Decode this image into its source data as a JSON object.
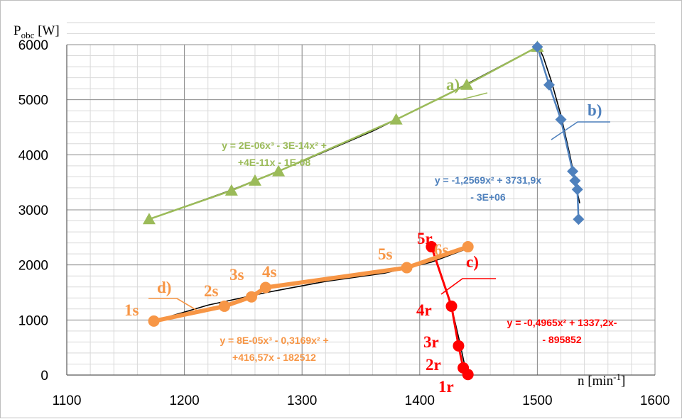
{
  "chart_data": {
    "type": "scatter",
    "xlim": [
      1100,
      1600
    ],
    "ylim": [
      0,
      6000
    ],
    "x_ticks": [
      "1100",
      "1200",
      "1300",
      "1400",
      "1500",
      "1600"
    ],
    "y_ticks": [
      "0",
      "1000",
      "2000",
      "3000",
      "4000",
      "5000",
      "6000"
    ],
    "ylabel_main": "P",
    "ylabel_sub": "obc",
    "ylabel_unit": " [W]",
    "xlabel_main": "n [min",
    "xlabel_sup": "-1",
    "xlabel_end": "]",
    "grid": true,
    "series": [
      {
        "name": "a)",
        "color": "#9BBB59",
        "marker": "triangle",
        "points": [
          [
            1170,
            2830
          ],
          [
            1240,
            3350
          ],
          [
            1260,
            3530
          ],
          [
            1280,
            3700
          ],
          [
            1380,
            4640
          ],
          [
            1440,
            5270
          ],
          [
            1500,
            5960
          ]
        ],
        "trend": [
          [
            1170,
            2830
          ],
          [
            1240,
            3360
          ],
          [
            1300,
            3880
          ],
          [
            1360,
            4430
          ],
          [
            1420,
            5060
          ],
          [
            1500,
            5960
          ]
        ],
        "equation": [
          "y = 2E-06x³ - 3E-14x² +",
          "+4E-11x - 1E-08"
        ]
      },
      {
        "name": "b)",
        "color": "#4F81BD",
        "marker": "diamond",
        "points": [
          [
            1500,
            5960
          ],
          [
            1510,
            5270
          ],
          [
            1520,
            4640
          ],
          [
            1530,
            3700
          ],
          [
            1532,
            3530
          ],
          [
            1534,
            3370
          ],
          [
            1535,
            2830
          ]
        ],
        "trend": [
          [
            1500,
            6000
          ],
          [
            1505,
            5780
          ],
          [
            1512,
            5330
          ],
          [
            1520,
            4720
          ],
          [
            1528,
            3960
          ],
          [
            1533,
            3420
          ],
          [
            1536,
            3120
          ]
        ],
        "equation": [
          "y = -1,2569x² + 3731,9x",
          "- 3E+06"
        ]
      },
      {
        "name": "c)",
        "color": "#FF0000",
        "marker": "circle",
        "points": [
          [
            1410,
            2330
          ],
          [
            1427,
            1250
          ],
          [
            1433,
            530
          ],
          [
            1437,
            130
          ],
          [
            1441,
            10
          ]
        ],
        "point_labels": [
          "5r",
          "4r",
          "3r",
          "2r",
          "1r"
        ],
        "trend": [
          [
            1410,
            2330
          ],
          [
            1420,
            1700
          ],
          [
            1428,
            1150
          ],
          [
            1434,
            600
          ],
          [
            1438,
            200
          ],
          [
            1441,
            10
          ]
        ],
        "equation": [
          "y = -0,4965x² + 1337,2x-",
          "- 895852"
        ]
      },
      {
        "name": "d)",
        "color": "#F79646",
        "marker": "circle",
        "points": [
          [
            1174,
            980
          ],
          [
            1234,
            1250
          ],
          [
            1257,
            1420
          ],
          [
            1269,
            1590
          ],
          [
            1389,
            1950
          ],
          [
            1441,
            2330
          ]
        ],
        "point_labels": [
          "1s",
          "2s",
          "3s",
          "4s",
          "5s",
          "6s"
        ],
        "trend": [
          [
            1174,
            980
          ],
          [
            1220,
            1270
          ],
          [
            1270,
            1500
          ],
          [
            1320,
            1700
          ],
          [
            1370,
            1850
          ],
          [
            1410,
            2050
          ],
          [
            1441,
            2300
          ]
        ],
        "equation": [
          "y = 8E-05x³ - 0,3169x² +",
          "+416,57x - 182512"
        ]
      }
    ]
  }
}
